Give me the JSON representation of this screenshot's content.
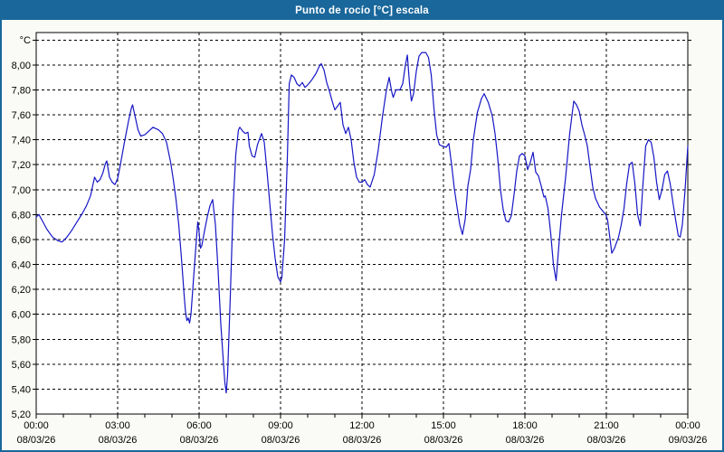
{
  "window": {
    "title": "Punto de rocío [°C] escala"
  },
  "colors": {
    "titlebar_bg": "#19679B",
    "titlebar_text": "#FFFFFF",
    "window_border": "#19679B",
    "background": "#FAFAF6",
    "plot_bg": "#FFFFFF",
    "grid": "#000000",
    "axis": "#000000",
    "text": "#000000",
    "line": "#1616C6"
  },
  "chart_data": {
    "type": "line",
    "title": "Punto de rocío [°C] escala",
    "unit": "°C",
    "ylim": [
      5.2,
      8.26
    ],
    "xlim": [
      0,
      24
    ],
    "grid": "dashed",
    "legend_position": "none",
    "yticks": [
      {
        "v": 5.2,
        "label": "5,20"
      },
      {
        "v": 5.4,
        "label": "5,40"
      },
      {
        "v": 5.6,
        "label": "5,60"
      },
      {
        "v": 5.8,
        "label": "5,80"
      },
      {
        "v": 6.0,
        "label": "6,00"
      },
      {
        "v": 6.2,
        "label": "6,20"
      },
      {
        "v": 6.4,
        "label": "6,40"
      },
      {
        "v": 6.6,
        "label": "6,60"
      },
      {
        "v": 6.8,
        "label": "6,80"
      },
      {
        "v": 7.0,
        "label": "7,00"
      },
      {
        "v": 7.2,
        "label": "7,20"
      },
      {
        "v": 7.4,
        "label": "7,40"
      },
      {
        "v": 7.6,
        "label": "7,60"
      },
      {
        "v": 7.8,
        "label": "7,80"
      },
      {
        "v": 8.0,
        "label": "8,00"
      }
    ],
    "ygrid_values": [
      5.4,
      5.6,
      5.8,
      6.0,
      6.2,
      6.4,
      6.6,
      6.8,
      7.0,
      7.2,
      7.4,
      7.6,
      7.8,
      8.0,
      8.2
    ],
    "xticks": [
      {
        "h": 0,
        "time": "00:00",
        "date": "08/03/26"
      },
      {
        "h": 3,
        "time": "03:00",
        "date": "08/03/26"
      },
      {
        "h": 6,
        "time": "06:00",
        "date": "08/03/26"
      },
      {
        "h": 9,
        "time": "09:00",
        "date": "08/03/26"
      },
      {
        "h": 12,
        "time": "12:00",
        "date": "08/03/26"
      },
      {
        "h": 15,
        "time": "15:00",
        "date": "08/03/26"
      },
      {
        "h": 18,
        "time": "18:00",
        "date": "08/03/26"
      },
      {
        "h": 21,
        "time": "21:00",
        "date": "08/03/26"
      },
      {
        "h": 24,
        "time": "00:00",
        "date": "09/03/26"
      }
    ],
    "minor_xtick_every_hours": 1,
    "series": [
      {
        "name": "Punto de rocío",
        "color": "#1616C6",
        "points": [
          [
            0,
            6.78
          ],
          [
            0.1,
            6.8
          ],
          [
            0.25,
            6.74
          ],
          [
            0.4,
            6.68
          ],
          [
            0.6,
            6.62
          ],
          [
            0.8,
            6.59
          ],
          [
            0.95,
            6.58
          ],
          [
            1.1,
            6.61
          ],
          [
            1.3,
            6.67
          ],
          [
            1.5,
            6.74
          ],
          [
            1.7,
            6.81
          ],
          [
            1.85,
            6.87
          ],
          [
            2,
            6.95
          ],
          [
            2.1,
            7.05
          ],
          [
            2.15,
            7.1
          ],
          [
            2.25,
            7.06
          ],
          [
            2.35,
            7.08
          ],
          [
            2.45,
            7.13
          ],
          [
            2.55,
            7.21
          ],
          [
            2.6,
            7.23
          ],
          [
            2.7,
            7.1
          ],
          [
            2.8,
            7.06
          ],
          [
            2.9,
            7.04
          ],
          [
            3,
            7.09
          ],
          [
            3.1,
            7.2
          ],
          [
            3.25,
            7.38
          ],
          [
            3.4,
            7.55
          ],
          [
            3.5,
            7.65
          ],
          [
            3.55,
            7.68
          ],
          [
            3.65,
            7.58
          ],
          [
            3.75,
            7.48
          ],
          [
            3.85,
            7.43
          ],
          [
            4,
            7.44
          ],
          [
            4.15,
            7.47
          ],
          [
            4.3,
            7.5
          ],
          [
            4.5,
            7.48
          ],
          [
            4.65,
            7.45
          ],
          [
            4.8,
            7.38
          ],
          [
            4.95,
            7.22
          ],
          [
            5.05,
            7.08
          ],
          [
            5.15,
            6.92
          ],
          [
            5.25,
            6.72
          ],
          [
            5.35,
            6.45
          ],
          [
            5.45,
            6.15
          ],
          [
            5.5,
            6.02
          ],
          [
            5.55,
            5.95
          ],
          [
            5.6,
            5.97
          ],
          [
            5.65,
            5.93
          ],
          [
            5.7,
            6
          ],
          [
            5.8,
            6.3
          ],
          [
            5.9,
            6.6
          ],
          [
            5.95,
            6.74
          ],
          [
            6,
            6.66
          ],
          [
            6.05,
            6.53
          ],
          [
            6.1,
            6.55
          ],
          [
            6.2,
            6.67
          ],
          [
            6.3,
            6.78
          ],
          [
            6.4,
            6.87
          ],
          [
            6.5,
            6.92
          ],
          [
            6.6,
            6.72
          ],
          [
            6.7,
            6.35
          ],
          [
            6.8,
            5.92
          ],
          [
            6.9,
            5.6
          ],
          [
            6.95,
            5.45
          ],
          [
            7,
            5.37
          ],
          [
            7.05,
            5.52
          ],
          [
            7.15,
            6.15
          ],
          [
            7.25,
            6.85
          ],
          [
            7.35,
            7.28
          ],
          [
            7.45,
            7.48
          ],
          [
            7.5,
            7.5
          ],
          [
            7.6,
            7.47
          ],
          [
            7.7,
            7.45
          ],
          [
            7.8,
            7.46
          ],
          [
            7.85,
            7.35
          ],
          [
            7.95,
            7.27
          ],
          [
            8.05,
            7.26
          ],
          [
            8.15,
            7.36
          ],
          [
            8.3,
            7.45
          ],
          [
            8.4,
            7.38
          ],
          [
            8.5,
            7.15
          ],
          [
            8.6,
            6.9
          ],
          [
            8.7,
            6.65
          ],
          [
            8.8,
            6.45
          ],
          [
            8.9,
            6.3
          ],
          [
            9,
            6.26
          ],
          [
            9.05,
            6.3
          ],
          [
            9.15,
            6.6
          ],
          [
            9.25,
            7.25
          ],
          [
            9.32,
            7.85
          ],
          [
            9.4,
            7.92
          ],
          [
            9.5,
            7.9
          ],
          [
            9.6,
            7.85
          ],
          [
            9.7,
            7.83
          ],
          [
            9.8,
            7.86
          ],
          [
            9.9,
            7.82
          ],
          [
            10,
            7.84
          ],
          [
            10.15,
            7.88
          ],
          [
            10.3,
            7.93
          ],
          [
            10.45,
            8
          ],
          [
            10.5,
            8.01
          ],
          [
            10.6,
            7.96
          ],
          [
            10.7,
            7.86
          ],
          [
            10.8,
            7.79
          ],
          [
            10.9,
            7.71
          ],
          [
            11,
            7.64
          ],
          [
            11.1,
            7.67
          ],
          [
            11.2,
            7.7
          ],
          [
            11.3,
            7.52
          ],
          [
            11.4,
            7.45
          ],
          [
            11.5,
            7.5
          ],
          [
            11.6,
            7.4
          ],
          [
            11.7,
            7.22
          ],
          [
            11.8,
            7.1
          ],
          [
            11.9,
            7.06
          ],
          [
            12,
            7.06
          ],
          [
            12.1,
            7.08
          ],
          [
            12.2,
            7.04
          ],
          [
            12.3,
            7.02
          ],
          [
            12.45,
            7.12
          ],
          [
            12.6,
            7.32
          ],
          [
            12.75,
            7.58
          ],
          [
            12.9,
            7.8
          ],
          [
            13,
            7.9
          ],
          [
            13.1,
            7.78
          ],
          [
            13.15,
            7.74
          ],
          [
            13.25,
            7.8
          ],
          [
            13.4,
            7.8
          ],
          [
            13.5,
            7.85
          ],
          [
            13.6,
            8
          ],
          [
            13.67,
            8.08
          ],
          [
            13.75,
            7.85
          ],
          [
            13.82,
            7.71
          ],
          [
            13.9,
            7.77
          ],
          [
            14,
            7.95
          ],
          [
            14.1,
            8.07
          ],
          [
            14.2,
            8.1
          ],
          [
            14.35,
            8.1
          ],
          [
            14.45,
            8.06
          ],
          [
            14.55,
            7.92
          ],
          [
            14.65,
            7.65
          ],
          [
            14.75,
            7.44
          ],
          [
            14.85,
            7.36
          ],
          [
            14.95,
            7.35
          ],
          [
            15.1,
            7.34
          ],
          [
            15.2,
            7.37
          ],
          [
            15.3,
            7.2
          ],
          [
            15.4,
            7.01
          ],
          [
            15.5,
            6.86
          ],
          [
            15.6,
            6.72
          ],
          [
            15.7,
            6.64
          ],
          [
            15.8,
            6.76
          ],
          [
            15.9,
            7.03
          ],
          [
            16,
            7.16
          ],
          [
            16.1,
            7.4
          ],
          [
            16.25,
            7.62
          ],
          [
            16.4,
            7.73
          ],
          [
            16.5,
            7.77
          ],
          [
            16.65,
            7.7
          ],
          [
            16.8,
            7.59
          ],
          [
            16.9,
            7.45
          ],
          [
            17,
            7.25
          ],
          [
            17.1,
            7
          ],
          [
            17.2,
            6.84
          ],
          [
            17.3,
            6.75
          ],
          [
            17.4,
            6.74
          ],
          [
            17.5,
            6.79
          ],
          [
            17.6,
            6.96
          ],
          [
            17.7,
            7.15
          ],
          [
            17.8,
            7.27
          ],
          [
            17.9,
            7.29
          ],
          [
            18,
            7.27
          ],
          [
            18.1,
            7.16
          ],
          [
            18.2,
            7.22
          ],
          [
            18.3,
            7.3
          ],
          [
            18.4,
            7.14
          ],
          [
            18.5,
            7.11
          ],
          [
            18.6,
            7.03
          ],
          [
            18.7,
            6.94
          ],
          [
            18.75,
            6.95
          ],
          [
            18.85,
            6.85
          ],
          [
            18.95,
            6.65
          ],
          [
            19.05,
            6.4
          ],
          [
            19.15,
            6.27
          ],
          [
            19.25,
            6.55
          ],
          [
            19.35,
            6.8
          ],
          [
            19.5,
            7.1
          ],
          [
            19.65,
            7.45
          ],
          [
            19.8,
            7.71
          ],
          [
            19.9,
            7.68
          ],
          [
            20,
            7.63
          ],
          [
            20.1,
            7.52
          ],
          [
            20.2,
            7.44
          ],
          [
            20.3,
            7.35
          ],
          [
            20.4,
            7.18
          ],
          [
            20.5,
            7.02
          ],
          [
            20.6,
            6.93
          ],
          [
            20.75,
            6.86
          ],
          [
            20.9,
            6.82
          ],
          [
            21,
            6.79
          ],
          [
            21.05,
            6.75
          ],
          [
            21.15,
            6.58
          ],
          [
            21.2,
            6.49
          ],
          [
            21.3,
            6.53
          ],
          [
            21.45,
            6.62
          ],
          [
            21.55,
            6.72
          ],
          [
            21.65,
            6.85
          ],
          [
            21.75,
            7.05
          ],
          [
            21.85,
            7.2
          ],
          [
            21.95,
            7.22
          ],
          [
            22.05,
            7.05
          ],
          [
            22.15,
            6.8
          ],
          [
            22.25,
            6.71
          ],
          [
            22.35,
            7.05
          ],
          [
            22.45,
            7.35
          ],
          [
            22.55,
            7.4
          ],
          [
            22.65,
            7.38
          ],
          [
            22.75,
            7.26
          ],
          [
            22.85,
            7.06
          ],
          [
            22.95,
            6.92
          ],
          [
            23.05,
            7
          ],
          [
            23.15,
            7.12
          ],
          [
            23.25,
            7.15
          ],
          [
            23.35,
            7.05
          ],
          [
            23.45,
            6.9
          ],
          [
            23.55,
            6.76
          ],
          [
            23.65,
            6.63
          ],
          [
            23.72,
            6.62
          ],
          [
            23.8,
            6.72
          ],
          [
            23.9,
            7
          ],
          [
            24,
            7.35
          ]
        ]
      }
    ]
  }
}
